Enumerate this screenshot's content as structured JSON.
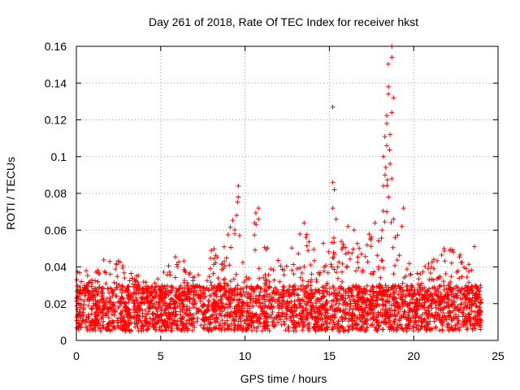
{
  "chart_data": {
    "type": "scatter",
    "title": "Day 261 of 2018, Rate Of TEC Index for receiver hkst",
    "xlabel": "GPS time / hours",
    "ylabel": "ROTI / TECUs",
    "xlim": [
      0,
      25
    ],
    "ylim": [
      0,
      0.16
    ],
    "xticks": [
      0,
      5,
      10,
      15,
      20,
      25
    ],
    "xtick_labels": [
      "0",
      "5",
      "10",
      "15",
      "20",
      "25"
    ],
    "yticks": [
      0,
      0.02,
      0.04,
      0.06,
      0.08,
      0.1,
      0.12,
      0.14,
      0.16
    ],
    "ytick_labels": [
      "0",
      "0.02",
      "0.04",
      "0.06",
      "0.08",
      "0.1",
      "0.12",
      "0.14",
      "0.16"
    ],
    "grid": true,
    "marker": "+",
    "marker_color": "#ff0000",
    "series": [
      {
        "name": "ROTI",
        "x_start_hours": 0,
        "x_end_hours": 24,
        "typical_range": [
          0.005,
          0.03
        ],
        "envelope_max": [
          [
            0,
            0.038
          ],
          [
            0.5,
            0.04
          ],
          [
            1,
            0.035
          ],
          [
            1.7,
            0.045
          ],
          [
            2.5,
            0.044
          ],
          [
            3,
            0.038
          ],
          [
            4,
            0.036
          ],
          [
            5,
            0.035
          ],
          [
            5.8,
            0.046
          ],
          [
            6.6,
            0.043
          ],
          [
            7.5,
            0.036
          ],
          [
            7.9,
            0.05
          ],
          [
            8.7,
            0.05
          ],
          [
            9.5,
            0.085
          ],
          [
            10,
            0.042
          ],
          [
            10.7,
            0.072
          ],
          [
            11.5,
            0.05
          ],
          [
            12.5,
            0.045
          ],
          [
            13.5,
            0.064
          ],
          [
            14,
            0.05
          ],
          [
            14.5,
            0.05
          ],
          [
            15,
            0.065
          ],
          [
            15.5,
            0.05
          ],
          [
            16,
            0.062
          ],
          [
            17,
            0.06
          ],
          [
            17.5,
            0.058
          ],
          [
            18,
            0.06
          ],
          [
            18.5,
            0.16
          ],
          [
            19,
            0.07
          ],
          [
            19.5,
            0.05
          ],
          [
            20,
            0.036
          ],
          [
            21,
            0.045
          ],
          [
            22,
            0.05
          ],
          [
            23,
            0.048
          ],
          [
            24,
            0.025
          ]
        ],
        "highlights": [
          {
            "x": 9.6,
            "y": 0.084
          },
          {
            "x": 9.6,
            "y": 0.078
          },
          {
            "x": 9.5,
            "y": 0.068
          },
          {
            "x": 10.8,
            "y": 0.072
          },
          {
            "x": 10.8,
            "y": 0.066
          },
          {
            "x": 13.5,
            "y": 0.064
          },
          {
            "x": 15.2,
            "y": 0.127
          },
          {
            "x": 15.2,
            "y": 0.086
          },
          {
            "x": 15.3,
            "y": 0.082
          },
          {
            "x": 15.2,
            "y": 0.072
          },
          {
            "x": 15.4,
            "y": 0.066
          },
          {
            "x": 16.1,
            "y": 0.062
          },
          {
            "x": 17.7,
            "y": 0.064
          },
          {
            "x": 18.7,
            "y": 0.16
          },
          {
            "x": 18.7,
            "y": 0.154
          },
          {
            "x": 18.5,
            "y": 0.138
          },
          {
            "x": 18.5,
            "y": 0.134
          },
          {
            "x": 18.8,
            "y": 0.132
          },
          {
            "x": 18.7,
            "y": 0.124
          },
          {
            "x": 18.4,
            "y": 0.118
          },
          {
            "x": 18.6,
            "y": 0.112
          },
          {
            "x": 18.4,
            "y": 0.106
          },
          {
            "x": 18.2,
            "y": 0.1
          },
          {
            "x": 18.6,
            "y": 0.096
          },
          {
            "x": 18.3,
            "y": 0.09
          },
          {
            "x": 18.7,
            "y": 0.088
          },
          {
            "x": 18.2,
            "y": 0.084
          },
          {
            "x": 18.5,
            "y": 0.078
          },
          {
            "x": 19.4,
            "y": 0.072
          },
          {
            "x": 18.4,
            "y": 0.07
          },
          {
            "x": 18.8,
            "y": 0.066
          },
          {
            "x": 19.3,
            "y": 0.062
          },
          {
            "x": 18.9,
            "y": 0.056
          },
          {
            "x": 23.6,
            "y": 0.051
          },
          {
            "x": 21.8,
            "y": 0.05
          }
        ]
      }
    ]
  }
}
